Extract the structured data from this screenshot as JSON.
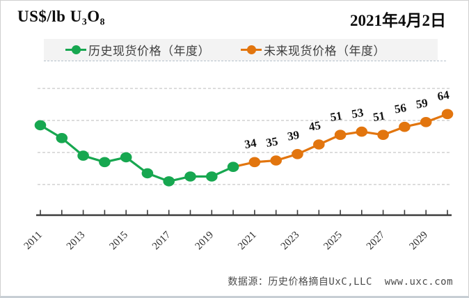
{
  "header": {
    "unit_label": "US$/lb U₃O₈",
    "date": "2021年4月2日"
  },
  "legend": {
    "items": [
      {
        "id": "historical",
        "label": "历史现货价格（年度）",
        "color": "#17a750",
        "marker": "circle-on-line-icon"
      },
      {
        "id": "future",
        "label": "未来现货价格（年度）",
        "color": "#e2750e",
        "marker": "circle-on-line-icon"
      }
    ]
  },
  "footer": {
    "source_text": "数据源：历史价格摘自UxC,LLC  www.uxc.com"
  },
  "chart_data": {
    "type": "line",
    "title": "US$/lb U₃O₈",
    "subtitle": "2021年4月2日",
    "ylabel": "US$/lb U₃O₈",
    "xlabel": "",
    "x_years": [
      2011,
      2012,
      2013,
      2014,
      2015,
      2016,
      2017,
      2018,
      2019,
      2020,
      2021,
      2022,
      2023,
      2024,
      2025,
      2026,
      2027,
      2028,
      2029,
      2030
    ],
    "x_tick_labels": [
      "2011",
      "2013",
      "2015",
      "2017",
      "2019",
      "2021",
      "2023",
      "2025",
      "2027",
      "2029"
    ],
    "y_gridlines": [
      20,
      40,
      60,
      80
    ],
    "ylim": [
      20,
      80
    ],
    "grid": "dashed-horizontal",
    "legend_position": "top",
    "series": [
      {
        "id": "historical",
        "name": "历史现货价格（年度）",
        "color": "#17a750",
        "start_year": 2011,
        "values": [
          57,
          49,
          38,
          34,
          37,
          27,
          22,
          25,
          25,
          31
        ],
        "values_are_estimated": true,
        "show_labels": false,
        "connect_from_previous": false
      },
      {
        "id": "future",
        "name": "未来现货价格（年度）",
        "color": "#e2750e",
        "start_year": 2021,
        "values": [
          34,
          35,
          39,
          45,
          51,
          53,
          51,
          56,
          59,
          64
        ],
        "values_are_estimated": false,
        "show_labels": true,
        "connect_from_previous": true
      }
    ]
  }
}
